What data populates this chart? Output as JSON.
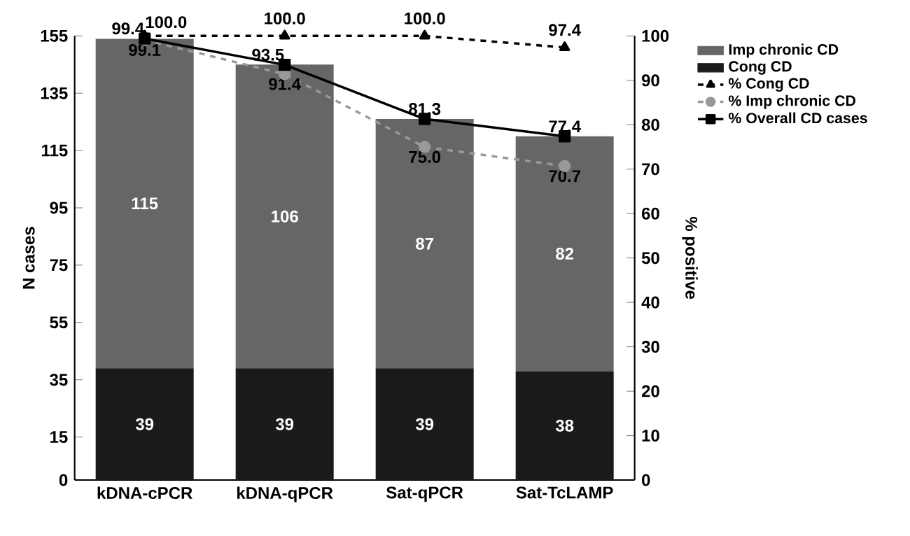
{
  "chart_data": {
    "type": "bar",
    "stacked": true,
    "categories": [
      "kDNA-cPCR",
      "kDNA-qPCR",
      "Sat-qPCR",
      "Sat-TcLAMP"
    ],
    "ylabel": "N cases",
    "y2label": "% positive",
    "ylim": [
      0,
      155
    ],
    "yticks": [
      0,
      15,
      35,
      55,
      75,
      95,
      115,
      135,
      155
    ],
    "y2lim": [
      0,
      100
    ],
    "y2ticks": [
      0,
      10,
      20,
      30,
      40,
      50,
      60,
      70,
      80,
      90,
      100
    ],
    "legend": "top right",
    "series": [
      {
        "name": "Cong CD",
        "color": "#1a1a1a",
        "values": [
          39,
          39,
          39,
          38
        ],
        "value_labels": [
          "39",
          "39",
          "39",
          "38"
        ]
      },
      {
        "name": "Imp chronic CD",
        "color": "#666666",
        "values": [
          115,
          106,
          87,
          82
        ],
        "value_labels": [
          "115",
          "106",
          "87",
          "82"
        ]
      },
      {
        "name": "% Cong CD",
        "type": "line",
        "axis": "y2",
        "color": "#000000",
        "marker": "triangle",
        "line_style": "dashed",
        "values": [
          100.0,
          100.0,
          100.0,
          97.4
        ],
        "value_labels": [
          "100.0",
          "100.0",
          "100.0",
          "97.4"
        ]
      },
      {
        "name": "% Imp chronic CD",
        "type": "line",
        "axis": "y2",
        "color": "#999999",
        "marker": "circle",
        "line_style": "dashed",
        "values": [
          99.1,
          91.4,
          75.0,
          70.7
        ],
        "value_labels": [
          "99.1",
          "91.4",
          "75.0",
          "70.7"
        ]
      },
      {
        "name": "% Overall CD cases",
        "type": "line",
        "axis": "y2",
        "color": "#000000",
        "marker": "square",
        "line_style": "solid",
        "values": [
          99.4,
          93.5,
          81.3,
          77.4
        ],
        "value_labels": [
          "99.4",
          "93.5",
          "81.3",
          "77.4"
        ]
      }
    ]
  }
}
